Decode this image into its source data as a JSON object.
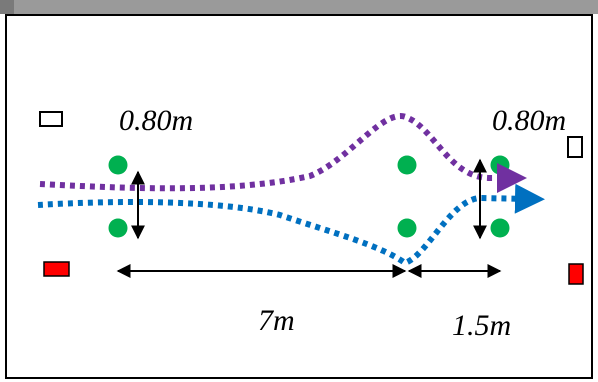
{
  "labels": {
    "gap_left": "0.80m",
    "gap_right": "0.80m",
    "distance_main": "7m",
    "distance_exit": "1.5m"
  },
  "colors": {
    "path_purple": "#7030a0",
    "path_blue": "#0070c0",
    "cone_green": "#00b050",
    "marker_red": "#ff0000",
    "frame": "#000000",
    "top_band": "#9a9a9a"
  }
}
